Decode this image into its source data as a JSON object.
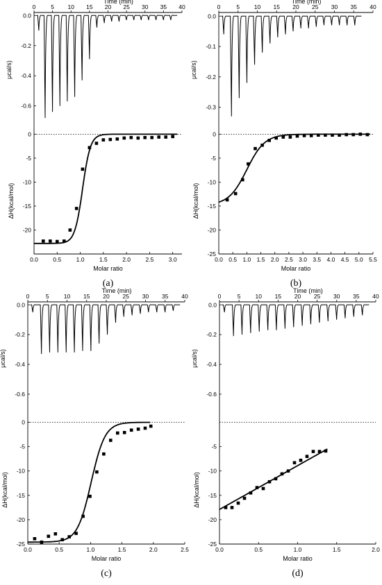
{
  "chart_data": [
    {
      "type": "line",
      "panel_label": "(a)",
      "top_xlabel": "Time (min)",
      "top_ylabel": "μcal/s)",
      "bottom_xlabel": "Molar ratio",
      "bottom_ylabel": "ΔH(kcal/mol)",
      "time_ticks": [
        "0",
        "5",
        "10",
        "15",
        "20",
        "25",
        "30",
        "35",
        "40"
      ],
      "power_ticks": [
        "0.0",
        "-0.2",
        "-0.4",
        "-0.6"
      ],
      "enthalpy_ticks": [
        "0",
        "-5",
        "-10",
        "-15",
        "-20"
      ],
      "ratio_ticks": [
        "0.0",
        "0.5",
        "1.0",
        "1.5",
        "2.0",
        "2.5",
        "3.0"
      ],
      "time_xlim": [
        0,
        40
      ],
      "power_ylim": [
        -0.74,
        0.02
      ],
      "ratio_xlim": [
        0,
        3.2
      ],
      "enthalpy_ylim": [
        -25,
        1.5
      ],
      "injections": {
        "times": [
          1.0,
          2.7,
          4.7,
          6.7,
          8.7,
          10.7,
          12.7,
          14.7,
          16.7,
          18.7,
          20.7,
          22.7,
          24.7,
          26.7,
          28.7,
          30.7,
          32.7,
          34.7,
          36.7
        ],
        "peak_power": [
          -0.1,
          -0.68,
          -0.64,
          -0.6,
          -0.57,
          -0.54,
          -0.43,
          -0.29,
          -0.08,
          -0.05,
          -0.04,
          -0.04,
          -0.03,
          -0.03,
          -0.03,
          -0.03,
          -0.03,
          -0.03,
          -0.03
        ]
      },
      "points": {
        "molar_ratio": [
          0.2,
          0.35,
          0.5,
          0.65,
          0.78,
          0.92,
          1.05,
          1.2,
          1.35,
          1.5,
          1.65,
          1.8,
          1.95,
          2.1,
          2.25,
          2.4,
          2.55,
          2.7,
          2.85,
          3.0
        ],
        "dH": [
          -22.3,
          -22.3,
          -22.4,
          -22.3,
          -20.0,
          -15.5,
          -7.3,
          -2.8,
          -1.9,
          -1.2,
          -1.1,
          -1.0,
          -0.8,
          -0.7,
          -0.8,
          -0.7,
          -0.7,
          -0.6,
          -0.6,
          -0.5
        ]
      },
      "fit": {
        "dH_min": -22.8,
        "midpoint": 1.05,
        "width": 0.085,
        "x_end": 3.1
      }
    },
    {
      "type": "line",
      "panel_label": "(b)",
      "top_xlabel": "Time (min)",
      "top_ylabel": "μcal/s)",
      "bottom_xlabel": "Molar ratio",
      "bottom_ylabel": "ΔH(kcal/mol)",
      "time_ticks": [
        "0",
        "5",
        "10",
        "15",
        "20",
        "25",
        "30",
        "35",
        "40"
      ],
      "power_ticks": [
        "0.0",
        "-0.1",
        "-0.2",
        "-0.3"
      ],
      "enthalpy_ticks": [
        "0",
        "-5",
        "-10",
        "-15",
        "-20",
        "-25"
      ],
      "ratio_ticks": [
        "0.0",
        "0.5",
        "1.0",
        "1.5",
        "2.0",
        "2.5",
        "3.0",
        "3.5",
        "4.0",
        "4.5",
        "5.0",
        "5.5"
      ],
      "time_xlim": [
        0,
        40
      ],
      "power_ylim": [
        -0.365,
        0.012
      ],
      "ratio_xlim": [
        0,
        5.5
      ],
      "enthalpy_ylim": [
        -25,
        1.5
      ],
      "injections": {
        "times": [
          1.0,
          3.0,
          5.0,
          7.0,
          9.0,
          11.0,
          13.0,
          15.0,
          17.0,
          19.0,
          21.0,
          23.0,
          25.0,
          27.0,
          29.0,
          31.0,
          33.0,
          35.0
        ],
        "peak_power": [
          -0.06,
          -0.33,
          -0.27,
          -0.22,
          -0.16,
          -0.12,
          -0.09,
          -0.07,
          -0.06,
          -0.05,
          -0.04,
          -0.04,
          -0.035,
          -0.03,
          -0.03,
          -0.03,
          -0.03,
          -0.03
        ]
      },
      "points": {
        "molar_ratio": [
          0.3,
          0.6,
          0.85,
          1.05,
          1.3,
          1.55,
          1.8,
          2.05,
          2.3,
          2.55,
          2.8,
          3.05,
          3.3,
          3.55,
          3.8,
          4.05,
          4.3,
          4.55,
          4.8,
          5.05,
          5.3
        ],
        "dH": [
          -13.7,
          -12.4,
          -9.5,
          -6.2,
          -3.0,
          -2.3,
          -1.3,
          -0.8,
          -0.6,
          -0.6,
          -0.4,
          -0.3,
          -0.3,
          -0.2,
          -0.2,
          -0.2,
          -0.2,
          -0.1,
          -0.1,
          0.0,
          -0.1
        ]
      },
      "fit": {
        "dH_min": -14.8,
        "midpoint": 1.0,
        "width": 0.32,
        "x_end": 5.4
      }
    },
    {
      "type": "line",
      "panel_label": "(c)",
      "top_xlabel": "Time (min)",
      "top_ylabel": "μcal/s)",
      "bottom_xlabel": "Molar ratio",
      "bottom_ylabel": "ΔH(kcal/mol)",
      "time_ticks": [
        "0",
        "5",
        "10",
        "15",
        "20",
        "25",
        "30",
        "35",
        "40"
      ],
      "power_ticks": [
        "0.0",
        "-0.2",
        "-0.4",
        "-0.6"
      ],
      "enthalpy_ticks": [
        "0",
        "-5",
        "-10",
        "-15",
        "-20",
        "-25"
      ],
      "ratio_ticks": [
        "0.0",
        "0.5",
        "1.0",
        "1.5",
        "2.0",
        "2.5"
      ],
      "time_xlim": [
        0,
        40
      ],
      "power_ylim": [
        -0.74,
        0.02
      ],
      "ratio_xlim": [
        0,
        2.5
      ],
      "enthalpy_ylim": [
        -25,
        1.5
      ],
      "injections": {
        "times": [
          1.0,
          3.2,
          5.3,
          7.4,
          9.5,
          11.6,
          13.7,
          15.8,
          17.9,
          20.0,
          22.1,
          24.2,
          26.3,
          28.4,
          30.5,
          32.6,
          34.7,
          36.8
        ],
        "peak_power": [
          -0.05,
          -0.33,
          -0.32,
          -0.32,
          -0.32,
          -0.32,
          -0.31,
          -0.31,
          -0.26,
          -0.2,
          -0.12,
          -0.08,
          -0.07,
          -0.06,
          -0.05,
          -0.05,
          -0.05,
          -0.04
        ]
      },
      "points": {
        "molar_ratio": [
          0.11,
          0.22,
          0.33,
          0.44,
          0.55,
          0.66,
          0.77,
          0.88,
          0.99,
          1.1,
          1.21,
          1.32,
          1.43,
          1.54,
          1.65,
          1.76,
          1.87,
          1.96
        ],
        "dH": [
          -23.9,
          -24.6,
          -23.4,
          -22.9,
          -24.1,
          -23.5,
          -22.8,
          -19.3,
          -15.2,
          -10.2,
          -6.5,
          -3.7,
          -2.2,
          -2.1,
          -1.6,
          -1.4,
          -1.2,
          -0.8
        ]
      },
      "fit": {
        "dH_min": -24.6,
        "midpoint": 1.01,
        "width": 0.11,
        "x_end": 1.95
      }
    },
    {
      "type": "line",
      "panel_label": "(d)",
      "top_xlabel": "Time (min)",
      "top_ylabel": "μcal/s)",
      "bottom_xlabel": "Molar ratio",
      "bottom_ylabel": "ΔH(kcal/mol)",
      "time_ticks": [
        "0",
        "5",
        "10",
        "15",
        "20",
        "25",
        "30",
        "35",
        "40"
      ],
      "power_ticks": [
        "0.0",
        "-0.2",
        "-0.4",
        "-0.6"
      ],
      "enthalpy_ticks": [
        "-5",
        "-10",
        "-15",
        "-20",
        "-25"
      ],
      "ratio_ticks": [
        "0.0",
        "0.5",
        "1.0",
        "1.5",
        "2.0"
      ],
      "time_xlim": [
        0,
        40
      ],
      "power_ylim": [
        -0.74,
        0.02
      ],
      "ratio_xlim": [
        0,
        2.0
      ],
      "enthalpy_ylim": [
        -25,
        1.5
      ],
      "injections": {
        "times": [
          1.0,
          3.3,
          5.5,
          7.7,
          9.9,
          12.1,
          14.3,
          16.5,
          18.7,
          20.9,
          23.1,
          25.3,
          27.5,
          29.7,
          31.9,
          34.1,
          36.3
        ],
        "peak_power": [
          -0.05,
          -0.21,
          -0.2,
          -0.19,
          -0.18,
          -0.17,
          -0.17,
          -0.16,
          -0.15,
          -0.14,
          -0.13,
          -0.12,
          -0.11,
          -0.1,
          -0.09,
          -0.08,
          -0.07
        ]
      },
      "points": {
        "molar_ratio": [
          0.08,
          0.16,
          0.24,
          0.32,
          0.4,
          0.48,
          0.56,
          0.64,
          0.72,
          0.8,
          0.88,
          0.96,
          1.04,
          1.12,
          1.2,
          1.28,
          1.36
        ],
        "dH": [
          -17.5,
          -17.5,
          -16.6,
          -15.6,
          -14.5,
          -13.4,
          -13.6,
          -12.2,
          -11.6,
          -10.6,
          -10.0,
          -8.3,
          -7.8,
          -7.0,
          -6.0,
          -6.0,
          -5.9
        ]
      },
      "fit": {
        "dH_min": -17.9,
        "slope": 9.0,
        "x_end": 1.38
      }
    }
  ]
}
